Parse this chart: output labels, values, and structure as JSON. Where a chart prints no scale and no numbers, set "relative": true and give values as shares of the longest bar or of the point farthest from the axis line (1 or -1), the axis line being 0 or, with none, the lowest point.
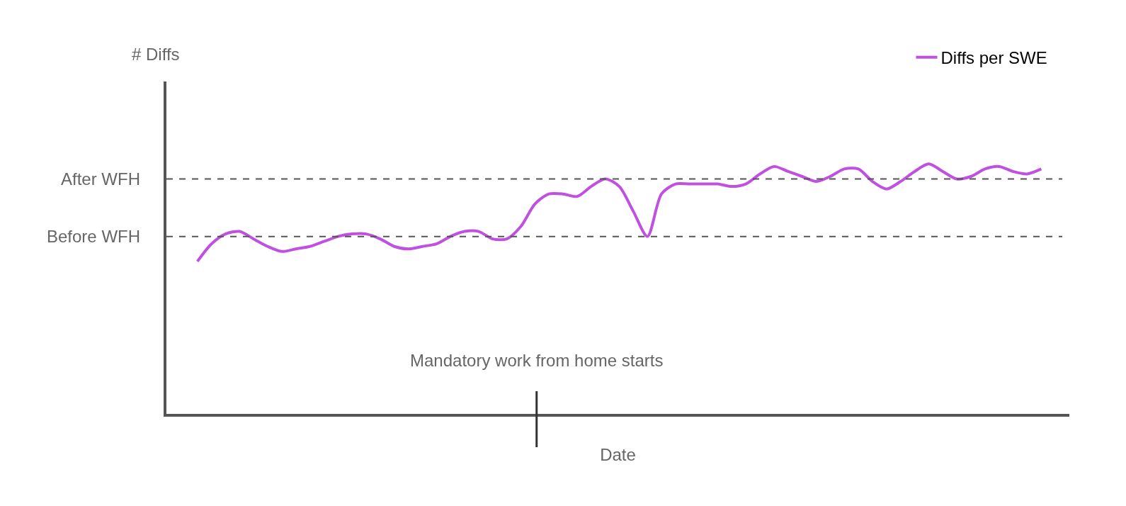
{
  "chart_data": {
    "type": "line",
    "relative": true,
    "xlabel": "Date",
    "annotations": [
      "# Diffs",
      "Mandatory work from home starts"
    ],
    "categories": [
      null,
      null,
      null,
      null,
      null,
      null,
      null,
      null,
      null,
      null,
      null,
      null,
      null,
      null,
      null,
      null,
      null,
      null,
      null,
      null,
      null,
      null,
      null,
      null,
      null,
      null,
      null,
      null,
      null,
      null,
      null,
      null,
      null,
      null,
      null,
      null,
      null,
      null,
      null,
      null,
      null,
      null,
      null,
      null,
      null,
      null,
      null,
      null,
      null,
      null,
      null,
      null,
      null,
      null,
      null,
      null,
      null,
      null,
      null,
      null,
      null
    ],
    "series": [
      {
        "name": "Diffs per SWE",
        "color": "#c050e0",
        "values": [
          0.61,
          0.68,
          0.72,
          0.73,
          0.7,
          0.67,
          0.65,
          0.66,
          0.67,
          0.69,
          0.71,
          0.72,
          0.72,
          0.7,
          0.67,
          0.66,
          0.67,
          0.68,
          0.71,
          0.73,
          0.73,
          0.7,
          0.7,
          0.75,
          0.84,
          0.88,
          0.88,
          0.87,
          0.91,
          0.94,
          0.91,
          0.81,
          0.71,
          0.88,
          0.92,
          0.92,
          0.92,
          0.92,
          0.91,
          0.92,
          0.96,
          0.99,
          0.97,
          0.95,
          0.93,
          0.95,
          0.98,
          0.98,
          0.93,
          0.9,
          0.93,
          0.97,
          1.0,
          0.97,
          0.94,
          0.95,
          0.98,
          0.99,
          0.97,
          0.96,
          0.98
        ]
      }
    ],
    "ref_lines": [
      {
        "axis": "y",
        "value": 0.94,
        "label": "After WFH",
        "color": "#555555",
        "line_style": "dashed"
      },
      {
        "axis": "y",
        "value": 0.71,
        "label": "Before WFH",
        "color": "#555555",
        "line_style": "dashed"
      }
    ],
    "legend": "top right",
    "marker": "none",
    "line_style": "solid"
  }
}
